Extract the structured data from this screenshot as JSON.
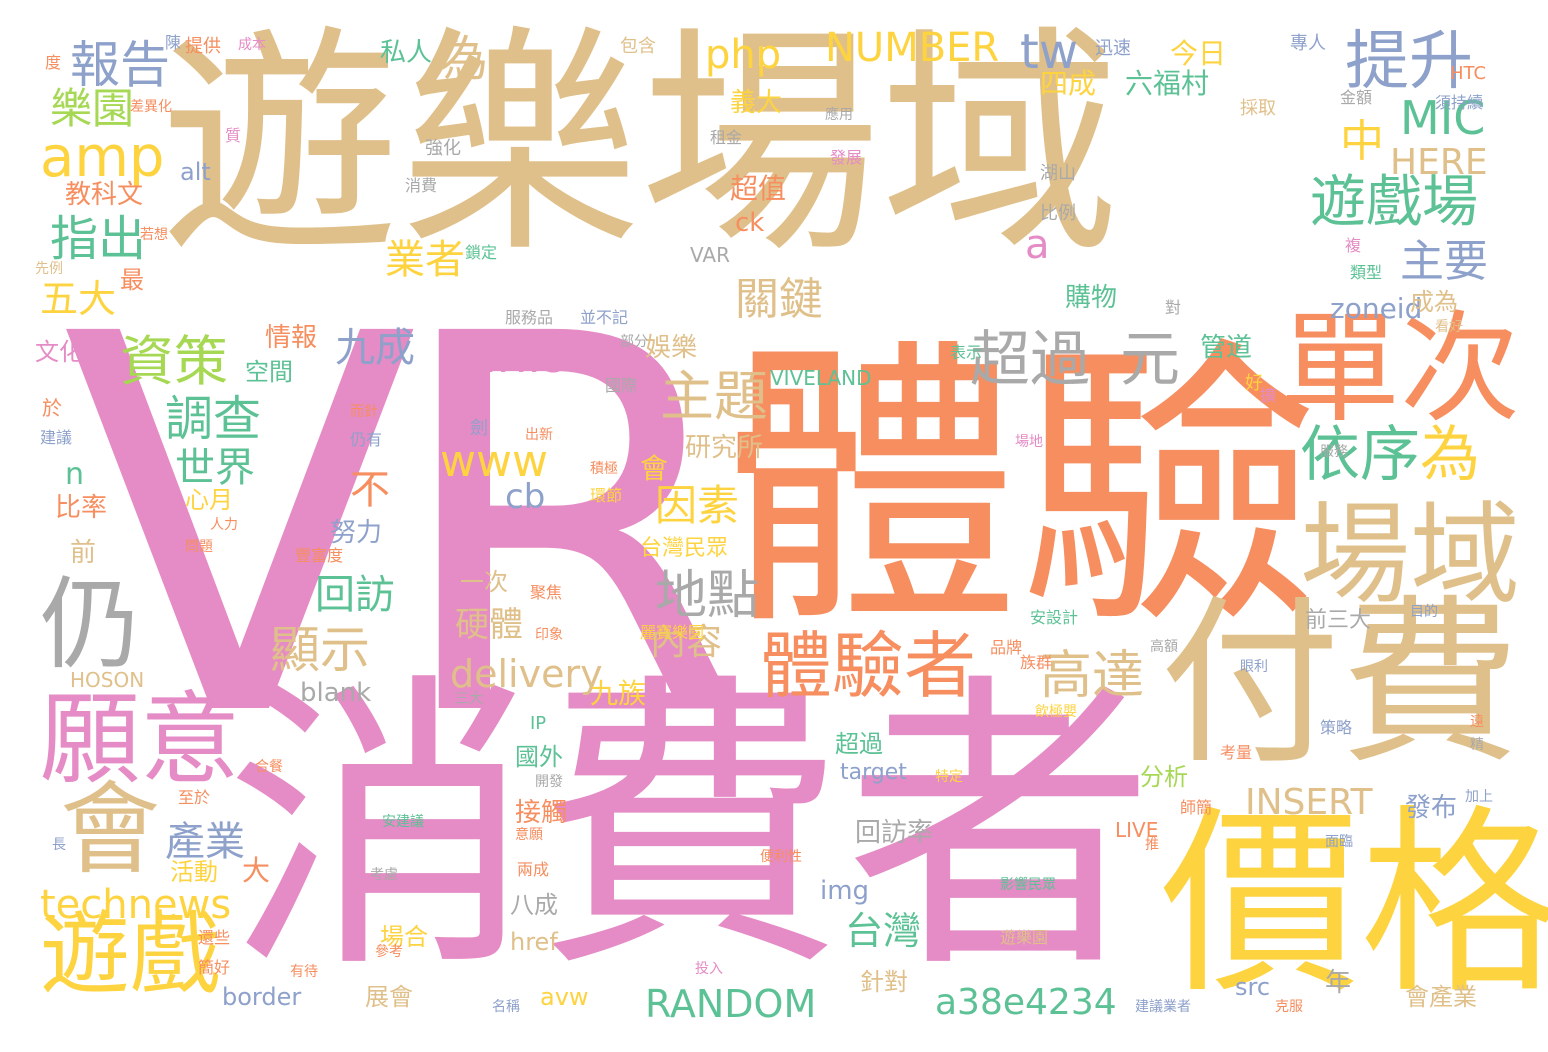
{
  "palette": {
    "pink": "#e58bc5",
    "orange": "#f68e5f",
    "tan": "#e0c08a",
    "yellow": "#fdd340",
    "green": "#5cc195",
    "gray": "#a9a9a9",
    "blue": "#8ea1cb",
    "lime": "#a6d854",
    "white": "#ffffff"
  },
  "words": [
    {
      "text": "VR",
      "color": "pink"
    },
    {
      "text": "遊樂場域",
      "color": "tan"
    },
    {
      "text": "體驗",
      "color": "orange"
    },
    {
      "text": "消費者",
      "color": "pink"
    },
    {
      "text": "付費",
      "color": "tan"
    },
    {
      "text": "價格",
      "color": "yellow"
    },
    {
      "text": "單次",
      "color": "orange"
    },
    {
      "text": "場域",
      "color": "tan"
    },
    {
      "text": "願意",
      "color": "pink"
    },
    {
      "text": "會",
      "color": "tan"
    },
    {
      "text": "仍",
      "color": "gray"
    },
    {
      "text": "體驗者",
      "color": "orange"
    },
    {
      "text": "遊戲",
      "color": "yellow"
    },
    {
      "text": "提升",
      "color": "blue"
    },
    {
      "text": "遊戲場",
      "color": "green"
    },
    {
      "text": "依序",
      "color": "green"
    },
    {
      "text": "為",
      "color": "yellow"
    },
    {
      "text": "超過",
      "color": "gray"
    },
    {
      "text": "元",
      "color": "gray"
    },
    {
      "text": "主題",
      "color": "tan"
    },
    {
      "text": "資策",
      "color": "lime"
    },
    {
      "text": "amp",
      "color": "yellow"
    },
    {
      "text": "報告",
      "color": "blue"
    },
    {
      "text": "樂園",
      "color": "lime"
    },
    {
      "text": "為",
      "color": "tan"
    },
    {
      "text": "指出",
      "color": "green"
    },
    {
      "text": "五大",
      "color": "yellow"
    },
    {
      "text": "調查",
      "color": "green"
    },
    {
      "text": "世界",
      "color": "green"
    },
    {
      "text": "NUMBER",
      "color": "yellow"
    },
    {
      "text": "tw",
      "color": "blue"
    },
    {
      "text": "php",
      "color": "yellow"
    },
    {
      "text": "MIC",
      "color": "green"
    },
    {
      "text": "中",
      "color": "yellow"
    },
    {
      "text": "HERE",
      "color": "tan"
    },
    {
      "text": "主要",
      "color": "blue"
    },
    {
      "text": "關鍵",
      "color": "tan"
    },
    {
      "text": "業者",
      "color": "yellow"
    },
    {
      "text": "a",
      "color": "pink"
    },
    {
      "text": "九成",
      "color": "blue"
    },
    {
      "text": "www5",
      "color": "pink"
    },
    {
      "text": "www",
      "color": "yellow"
    },
    {
      "text": "因素",
      "color": "yellow"
    },
    {
      "text": "地點",
      "color": "gray"
    },
    {
      "text": "高達",
      "color": "tan"
    },
    {
      "text": "顯示",
      "color": "tan"
    },
    {
      "text": "回訪",
      "color": "green"
    },
    {
      "text": "不",
      "color": "orange"
    },
    {
      "text": "cb",
      "color": "blue"
    },
    {
      "text": "delivery",
      "color": "tan"
    },
    {
      "text": "內容",
      "color": "tan"
    },
    {
      "text": "硬體",
      "color": "tan"
    },
    {
      "text": "technews",
      "color": "yellow"
    },
    {
      "text": "產業",
      "color": "blue"
    },
    {
      "text": "RANDOM",
      "color": "green"
    },
    {
      "text": "a38e4234",
      "color": "green"
    },
    {
      "text": "INSERT",
      "color": "tan"
    },
    {
      "text": "台灣",
      "color": "green"
    },
    {
      "text": "九族",
      "color": "yellow"
    },
    {
      "text": "blank",
      "color": "gray"
    },
    {
      "text": "zoneid",
      "color": "blue"
    },
    {
      "text": "VIVELAND",
      "color": "green"
    },
    {
      "text": "今日",
      "color": "yellow"
    },
    {
      "text": "四成",
      "color": "yellow"
    },
    {
      "text": "六福村",
      "color": "green"
    },
    {
      "text": "義大",
      "color": "yellow"
    },
    {
      "text": "私人",
      "color": "green"
    },
    {
      "text": "alt",
      "color": "blue"
    },
    {
      "text": "教科文",
      "color": "orange"
    },
    {
      "text": "超值",
      "color": "orange"
    },
    {
      "text": "ck",
      "color": "orange"
    },
    {
      "text": "VAR",
      "color": "gray"
    },
    {
      "text": "購物",
      "color": "green"
    },
    {
      "text": "成為",
      "color": "tan"
    },
    {
      "text": "管道",
      "color": "green"
    },
    {
      "text": "情報",
      "color": "orange"
    },
    {
      "text": "空間",
      "color": "green"
    },
    {
      "text": "文化村",
      "color": "pink"
    },
    {
      "text": "娛樂",
      "color": "tan"
    },
    {
      "text": "研究所",
      "color": "tan"
    },
    {
      "text": "會",
      "color": "yellow"
    },
    {
      "text": "n",
      "color": "green"
    },
    {
      "text": "比率",
      "color": "orange"
    },
    {
      "text": "心月",
      "color": "yellow"
    },
    {
      "text": "努力",
      "color": "blue"
    },
    {
      "text": "前",
      "color": "tan"
    },
    {
      "text": "台灣民眾",
      "color": "yellow"
    },
    {
      "text": "一次",
      "color": "tan"
    },
    {
      "text": "超過",
      "color": "green"
    },
    {
      "text": "國外",
      "color": "green"
    },
    {
      "text": "分析",
      "color": "lime"
    },
    {
      "text": "target",
      "color": "blue"
    },
    {
      "text": "發布",
      "color": "blue"
    },
    {
      "text": "接觸",
      "color": "orange"
    },
    {
      "text": "回訪率",
      "color": "gray"
    },
    {
      "text": "img",
      "color": "blue"
    },
    {
      "text": "活動",
      "color": "yellow"
    },
    {
      "text": "大",
      "color": "orange"
    },
    {
      "text": "八成",
      "color": "gray"
    },
    {
      "text": "場合",
      "color": "yellow"
    },
    {
      "text": "href",
      "color": "tan"
    },
    {
      "text": "border",
      "color": "blue"
    },
    {
      "text": "展會",
      "color": "tan"
    },
    {
      "text": "avw",
      "color": "yellow"
    },
    {
      "text": "針對",
      "color": "tan"
    },
    {
      "text": "src",
      "color": "blue"
    },
    {
      "text": "年",
      "color": "gray"
    },
    {
      "text": "會產業",
      "color": "tan"
    },
    {
      "text": "前三大",
      "color": "gray"
    },
    {
      "text": "HOSON",
      "color": "tan"
    },
    {
      "text": "LIVE",
      "color": "orange"
    },
    {
      "text": "IP",
      "color": "green"
    },
    {
      "text": "HTC",
      "color": "orange"
    },
    {
      "text": "專人",
      "color": "blue"
    },
    {
      "text": "迅速",
      "color": "blue"
    },
    {
      "text": "包含",
      "color": "tan"
    },
    {
      "text": "提供",
      "color": "orange"
    },
    {
      "text": "成本",
      "color": "pink"
    },
    {
      "text": "度",
      "color": "orange"
    },
    {
      "text": "陳",
      "color": "blue"
    },
    {
      "text": "須持續",
      "color": "blue"
    },
    {
      "text": "金額",
      "color": "gray"
    },
    {
      "text": "採取",
      "color": "tan"
    },
    {
      "text": "應用",
      "color": "gray"
    },
    {
      "text": "差異化",
      "color": "orange"
    },
    {
      "text": "質",
      "color": "pink"
    },
    {
      "text": "租金",
      "color": "gray"
    },
    {
      "text": "強化",
      "color": "gray"
    },
    {
      "text": "發展",
      "color": "pink"
    },
    {
      "text": "湖山",
      "color": "gray"
    },
    {
      "text": "消費",
      "color": "gray"
    },
    {
      "text": "比例",
      "color": "gray"
    },
    {
      "text": "若想",
      "color": "orange"
    },
    {
      "text": "鎖定",
      "color": "green"
    },
    {
      "text": "先例",
      "color": "tan"
    },
    {
      "text": "最",
      "color": "orange"
    },
    {
      "text": "類型",
      "color": "green"
    },
    {
      "text": "複",
      "color": "pink"
    },
    {
      "text": "對",
      "color": "gray"
    },
    {
      "text": "服務品",
      "color": "gray"
    },
    {
      "text": "並不記",
      "color": "blue"
    },
    {
      "text": "部分",
      "color": "gray"
    },
    {
      "text": "表示",
      "color": "green"
    },
    {
      "text": "看好",
      "color": "tan"
    },
    {
      "text": "導入",
      "color": "pink"
    },
    {
      "text": "國際",
      "color": "gray"
    },
    {
      "text": "好",
      "color": "yellow"
    },
    {
      "text": "擴",
      "color": "pink"
    },
    {
      "text": "而針",
      "color": "orange"
    },
    {
      "text": "於",
      "color": "orange"
    },
    {
      "text": "建議",
      "color": "blue"
    },
    {
      "text": "仍有",
      "color": "blue"
    },
    {
      "text": "劍",
      "color": "blue"
    },
    {
      "text": "出新",
      "color": "orange"
    },
    {
      "text": "積極",
      "color": "orange"
    },
    {
      "text": "環節",
      "color": "yellow"
    },
    {
      "text": "場地",
      "color": "pink"
    },
    {
      "text": "服務",
      "color": "gray"
    },
    {
      "text": "人力",
      "color": "orange"
    },
    {
      "text": "問題",
      "color": "orange"
    },
    {
      "text": "豐富度",
      "color": "orange"
    },
    {
      "text": "聚焦",
      "color": "orange"
    },
    {
      "text": "印象",
      "color": "orange"
    },
    {
      "text": "麗寶樂園",
      "color": "yellow"
    },
    {
      "text": "安設計",
      "color": "green"
    },
    {
      "text": "目的",
      "color": "blue"
    },
    {
      "text": "高額",
      "color": "gray"
    },
    {
      "text": "品牌",
      "color": "orange"
    },
    {
      "text": "族群",
      "color": "orange"
    },
    {
      "text": "眼利",
      "color": "blue"
    },
    {
      "text": "三大",
      "color": "gray"
    },
    {
      "text": "飲極嬰",
      "color": "yellow"
    },
    {
      "text": "策略",
      "color": "blue"
    },
    {
      "text": "遠",
      "color": "orange"
    },
    {
      "text": "精",
      "color": "gray"
    },
    {
      "text": "考量",
      "color": "orange"
    },
    {
      "text": "合餐",
      "color": "orange"
    },
    {
      "text": "開發",
      "color": "gray"
    },
    {
      "text": "特定",
      "color": "yellow"
    },
    {
      "text": "至於",
      "color": "orange"
    },
    {
      "text": "加上",
      "color": "blue"
    },
    {
      "text": "師簡",
      "color": "orange"
    },
    {
      "text": "安建議",
      "color": "green"
    },
    {
      "text": "意願",
      "color": "orange"
    },
    {
      "text": "推",
      "color": "orange"
    },
    {
      "text": "長",
      "color": "blue"
    },
    {
      "text": "面臨",
      "color": "blue"
    },
    {
      "text": "便利性",
      "color": "orange"
    },
    {
      "text": "兩成",
      "color": "orange"
    },
    {
      "text": "考慮",
      "color": "gray"
    },
    {
      "text": "影響民眾",
      "color": "green"
    },
    {
      "text": "還些",
      "color": "orange"
    },
    {
      "text": "參考",
      "color": "orange"
    },
    {
      "text": "遊樂園",
      "color": "tan"
    },
    {
      "text": "簡好",
      "color": "orange"
    },
    {
      "text": "有待",
      "color": "orange"
    },
    {
      "text": "投入",
      "color": "pink"
    },
    {
      "text": "名稱",
      "color": "blue"
    },
    {
      "text": "建議業者",
      "color": "blue"
    },
    {
      "text": "克服",
      "color": "orange"
    }
  ]
}
